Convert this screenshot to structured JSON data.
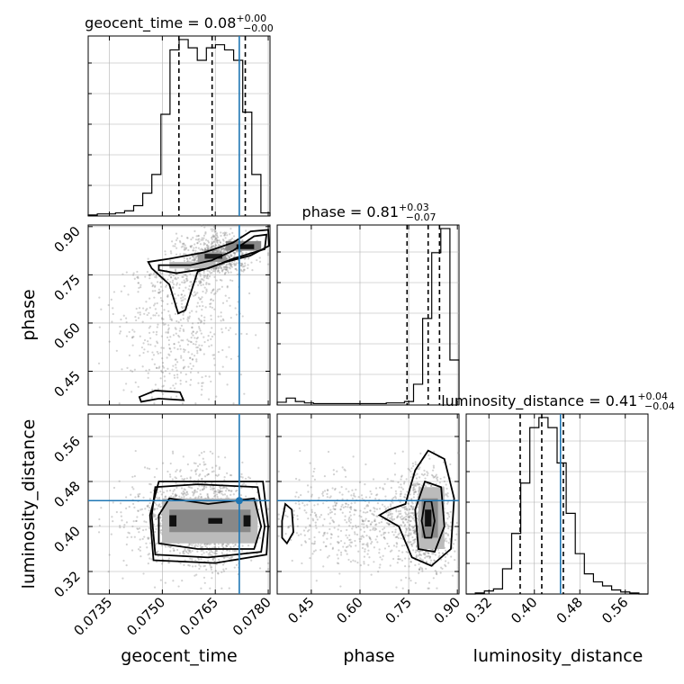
{
  "chart_data": {
    "type": "corner",
    "parameters": [
      "geocent_time",
      "phase",
      "luminosity_distance"
    ],
    "truth": {
      "geocent_time": 0.07718,
      "phase": null,
      "luminosity_distance": 0.446
    },
    "ranges": {
      "geocent_time": [
        0.0729,
        0.07805
      ],
      "phase": [
        0.345,
        0.905
      ],
      "luminosity_distance": [
        0.28,
        0.6
      ]
    },
    "ticks": {
      "geocent_time": {
        "values": [
          0.0735,
          0.075,
          0.0765,
          0.078
        ],
        "labels": [
          "0.0735",
          "0.0750",
          "0.0765",
          "0.0780"
        ]
      },
      "phase": {
        "values": [
          0.45,
          0.6,
          0.75,
          0.9
        ],
        "labels": [
          "0.45",
          "0.60",
          "0.75",
          "0.90"
        ]
      },
      "luminosity_distance": {
        "values": [
          0.32,
          0.4,
          0.48,
          0.56
        ],
        "labels": [
          "0.32",
          "0.40",
          "0.48",
          "0.56"
        ]
      }
    },
    "marginals": [
      {
        "parameter": "geocent_time",
        "title": {
          "label": "geocent_time = ",
          "value": "0.08",
          "plus": "+0.00",
          "minus": "−0.00"
        },
        "bin_edges_start": 0.0729,
        "bin_width": 0.0002575,
        "counts": [
          1,
          2,
          2,
          3,
          5,
          10,
          22,
          40,
          98,
          160,
          170,
          162,
          150,
          162,
          165,
          160,
          150,
          100,
          40,
          3
        ],
        "quantiles": [
          0.07547,
          0.07641,
          0.07735
        ]
      },
      {
        "parameter": "phase",
        "title": {
          "label": "phase = ",
          "value": "0.81",
          "plus": "+0.03",
          "minus": "−0.07"
        },
        "bin_edges_start": 0.345,
        "bin_width": 0.028,
        "counts": [
          4,
          10,
          5,
          3,
          2,
          2,
          2,
          2,
          2,
          2,
          2,
          2,
          3,
          3,
          5,
          30,
          125,
          220,
          255,
          65
        ],
        "quantiles": [
          0.745,
          0.81,
          0.845
        ]
      },
      {
        "parameter": "luminosity_distance",
        "title": {
          "label": "luminosity_distance = ",
          "value": "0.41",
          "plus": "+0.04",
          "minus": "−0.04"
        },
        "bin_edges_start": 0.28,
        "bin_width": 0.016,
        "counts": [
          0,
          1,
          3,
          5,
          25,
          60,
          110,
          165,
          175,
          165,
          130,
          80,
          40,
          20,
          12,
          8,
          4,
          2,
          1,
          0
        ],
        "quantiles": [
          0.375,
          0.413,
          0.451
        ]
      }
    ],
    "joint_panels": [
      {
        "x": "geocent_time",
        "y": "phase"
      },
      {
        "x": "geocent_time",
        "y": "luminosity_distance"
      },
      {
        "x": "phase",
        "y": "luminosity_distance"
      }
    ],
    "grid": true,
    "colors": {
      "histogram": "#000000",
      "truth": "#1f77b4",
      "points": "#7f7f7f",
      "grid": "#b0b0b0"
    }
  }
}
